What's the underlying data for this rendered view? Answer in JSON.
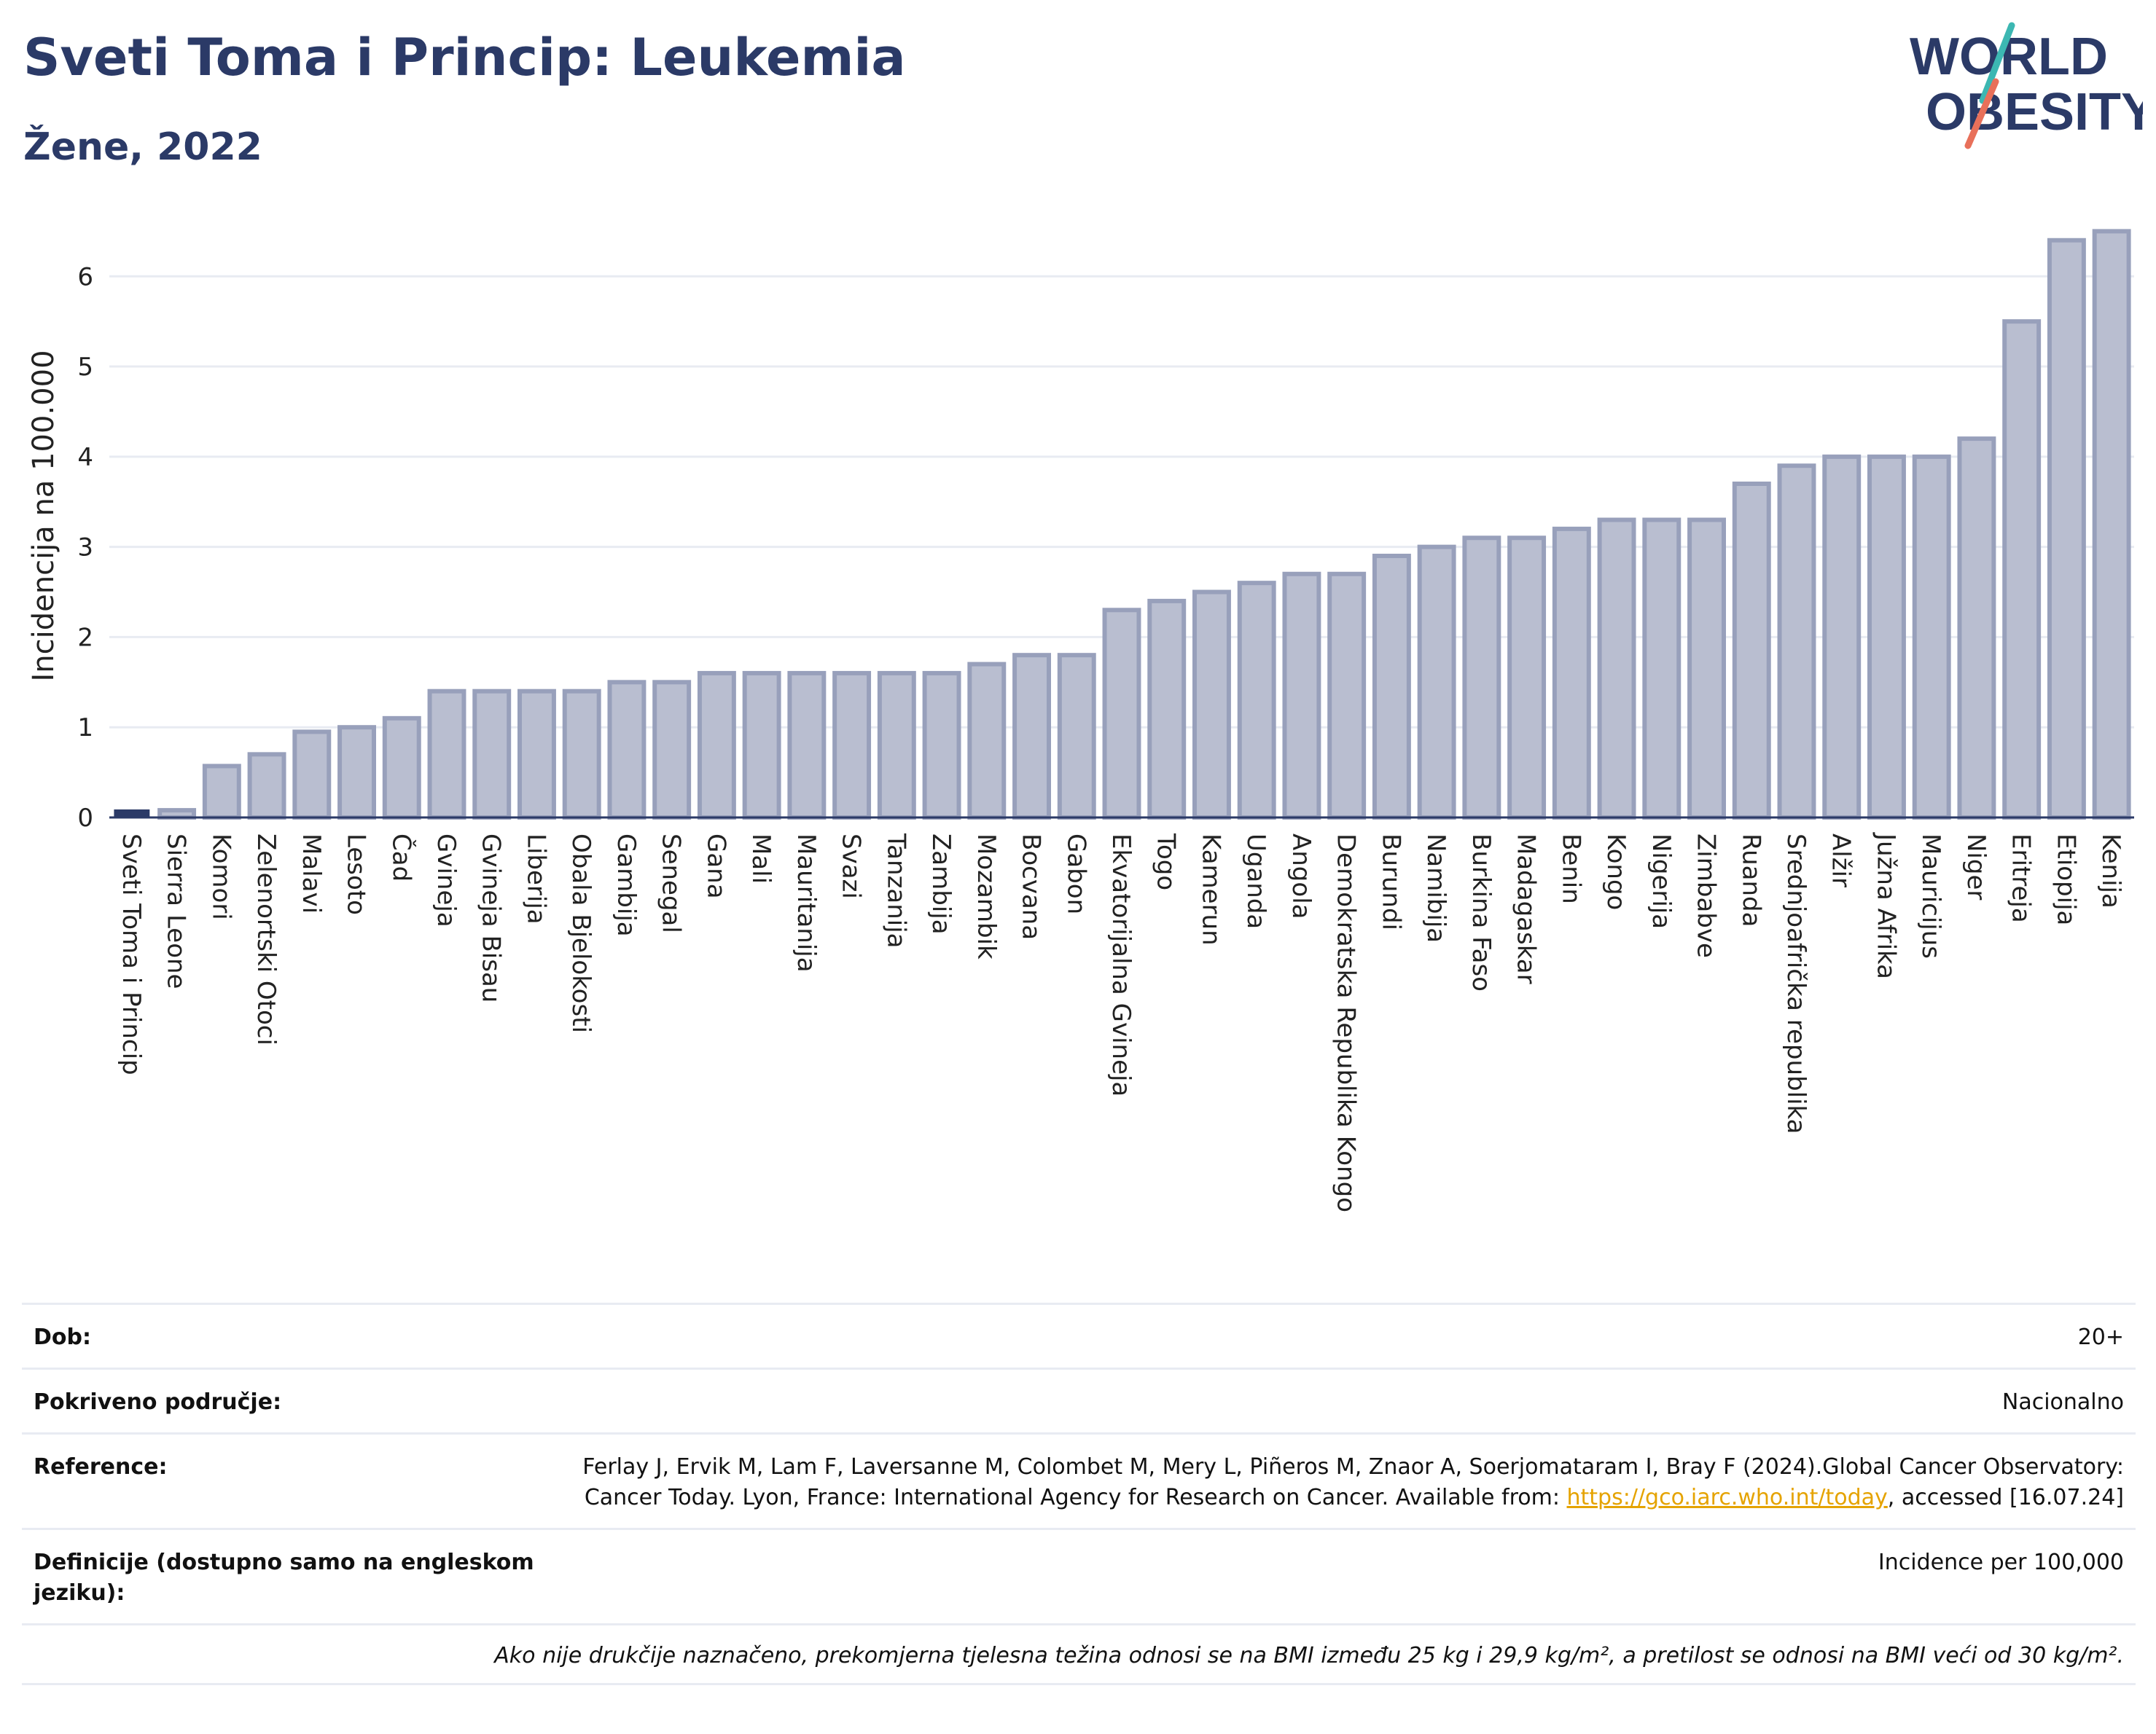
{
  "header": {
    "title": "Sveti Toma i Princip: Leukemia",
    "subtitle": "Žene, 2022"
  },
  "logo": {
    "line1": "WORLD",
    "line2": "OBESITY"
  },
  "colors": {
    "bar_fill": "#b9bed0",
    "bar_stroke": "#98a0bb",
    "highlight_fill": "#2b3a67",
    "text": "#2b3a67",
    "grid": "#e8ebf2",
    "logo_teal": "#3cb7b2",
    "logo_red": "#e8705a"
  },
  "chart_data": {
    "type": "bar",
    "ylabel": "Incidencija na 100.000",
    "xlabel": "",
    "ylim": [
      0,
      6.6
    ],
    "yticks": [
      0,
      1,
      2,
      3,
      4,
      5,
      6
    ],
    "grid": true,
    "highlight": "Sveti Toma i Princip",
    "categories": [
      "Sveti Toma i Princip",
      "Sierra Leone",
      "Komori",
      "Zelenortski Otoci",
      "Malavi",
      "Lesoto",
      "Čad",
      "Gvineja",
      "Gvineja Bisau",
      "Liberija",
      "Obala Bjelokosti",
      "Gambija",
      "Senegal",
      "Gana",
      "Mali",
      "Mauritanija",
      "Svazi",
      "Tanzanija",
      "Zambija",
      "Mozambik",
      "Bocvana",
      "Gabon",
      "Ekvatorijalna Gvineja",
      "Togo",
      "Kamerun",
      "Uganda",
      "Angola",
      "Demokratska Republika Kongo",
      "Burundi",
      "Namibija",
      "Burkina Faso",
      "Madagaskar",
      "Benin",
      "Kongo",
      "Nigerija",
      "Zimbabve",
      "Ruanda",
      "Srednjoafrička republika",
      "Alžir",
      "Južna Afrika",
      "Mauricijus",
      "Niger",
      "Eritreja",
      "Etiopija",
      "Kenija"
    ],
    "values": [
      0.03,
      0.08,
      0.57,
      0.7,
      0.95,
      1.0,
      1.1,
      1.4,
      1.4,
      1.4,
      1.4,
      1.5,
      1.5,
      1.6,
      1.6,
      1.6,
      1.6,
      1.6,
      1.6,
      1.7,
      1.8,
      1.8,
      2.3,
      2.4,
      2.5,
      2.6,
      2.7,
      2.7,
      2.9,
      3.0,
      3.1,
      3.1,
      3.2,
      3.3,
      3.3,
      3.3,
      3.7,
      3.9,
      4.0,
      4.0,
      4.0,
      4.2,
      5.5,
      6.4,
      6.5
    ]
  },
  "info": {
    "rows": [
      {
        "label": "Dob:",
        "value": "20+"
      },
      {
        "label": "Pokriveno područje:",
        "value": "Nacionalno"
      },
      {
        "label": "Reference:",
        "value_pre": "Ferlay J, Ervik M, Lam F, Laversanne M, Colombet M, Mery L, Piñeros M, Znaor A, Soerjomataram I, Bray F (2024).Global Cancer Observatory: Cancer Today. Lyon, France: International Agency for Research on Cancer. Available from: ",
        "link": "https://gco.iarc.who.int/today",
        "value_post": ", accessed [16.07.24]"
      },
      {
        "label": "Definicije (dostupno samo na engleskom jeziku):",
        "value": "Incidence per 100,000"
      }
    ],
    "note": "Ako nije drukčije naznačeno, prekomjerna tjelesna težina odnosi se na BMI između 25 kg i 29,9 kg/m², a pretilost se odnosi na BMI veći od 30 kg/m²."
  }
}
